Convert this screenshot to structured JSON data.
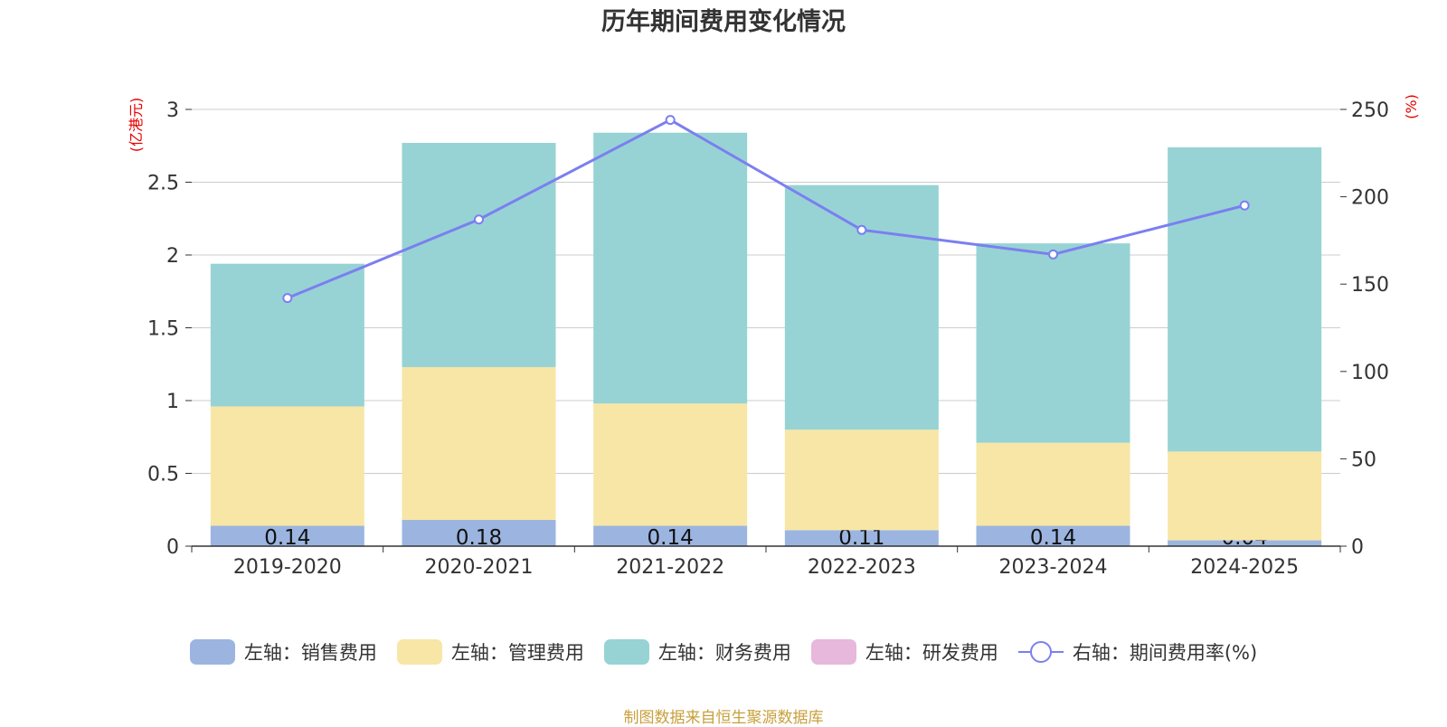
{
  "chart_data": {
    "type": "bar",
    "title": "历年期间费用变化情况",
    "categories": [
      "2019-2020",
      "2020-2021",
      "2021-2022",
      "2022-2023",
      "2023-2024",
      "2024-2025"
    ],
    "y_left": {
      "label": "(亿港元)",
      "range": [
        0,
        3
      ],
      "ticks": [
        "0",
        "0.5",
        "1",
        "1.5",
        "2",
        "2.5",
        "3"
      ]
    },
    "y_right": {
      "label": "(%)",
      "range": [
        0,
        250
      ],
      "ticks": [
        "0",
        "50",
        "100",
        "150",
        "200",
        "250"
      ]
    },
    "series": [
      {
        "name": "左轴：销售费用",
        "kind": "bar",
        "stack": true,
        "color": "#9bb5e0",
        "values": [
          0.14,
          0.18,
          0.14,
          0.11,
          0.14,
          0.04
        ],
        "labels": [
          "0.14",
          "0.18",
          "0.14",
          "0.11",
          "0.14",
          "0.04"
        ]
      },
      {
        "name": "左轴：管理费用",
        "kind": "bar",
        "stack": true,
        "color": "#f7e6a6",
        "values": [
          0.82,
          1.05,
          0.84,
          0.69,
          0.57,
          0.61
        ]
      },
      {
        "name": "左轴：财务费用",
        "kind": "bar",
        "stack": true,
        "color": "#97d3d4",
        "values": [
          0.98,
          1.54,
          1.86,
          1.68,
          1.37,
          2.09
        ]
      },
      {
        "name": "左轴：研发费用",
        "kind": "bar",
        "stack": true,
        "color": "#e7b8db",
        "values": [
          0,
          0,
          0,
          0,
          0,
          0
        ]
      },
      {
        "name": "右轴：期间费用率(%)",
        "kind": "line",
        "axis": "right",
        "color": "#7b7ff0",
        "values": [
          142,
          187,
          244,
          181,
          167,
          195
        ]
      }
    ],
    "grid": true,
    "legend_position": "bottom"
  },
  "footer": {
    "source": "制图数据来自恒生聚源数据库"
  }
}
